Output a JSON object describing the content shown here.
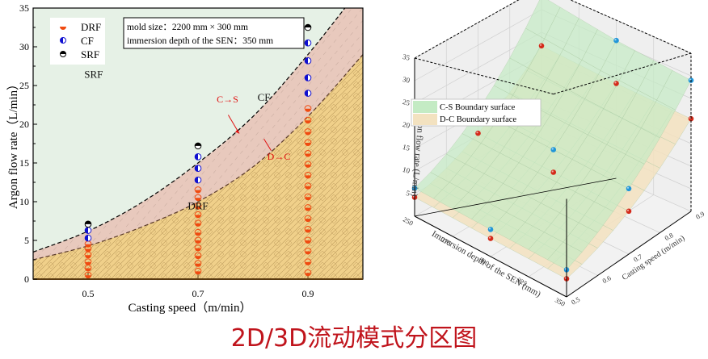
{
  "caption": "2D/3D流动模式分区图",
  "chart_data": [
    {
      "type": "scatter",
      "title": "",
      "xlabel": "Casting speed（m/min）",
      "ylabel": "Argon flow rate（L/min）",
      "xlim": [
        0.4,
        1.0
      ],
      "ylim": [
        0,
        35
      ],
      "xticks": [
        0.5,
        0.7,
        0.9
      ],
      "yticks": [
        0,
        5,
        10,
        15,
        20,
        25,
        30,
        35
      ],
      "legend": [
        "DRF",
        "CF",
        "SRF"
      ],
      "legend_position": "upper-left",
      "annotation_box": [
        "mold size：2200 mm × 300 mm",
        "immersion depth of the SEN：350 mm"
      ],
      "region_labels": [
        {
          "text": "SRF",
          "x": 0.51,
          "y": 26
        },
        {
          "text": "CF",
          "x": 0.82,
          "y": 23
        },
        {
          "text": "DRF",
          "x": 0.7,
          "y": 9
        }
      ],
      "boundary_annotations": [
        {
          "text": "C→S",
          "x": 0.79,
          "y": 22
        },
        {
          "text": "D→C",
          "x": 0.83,
          "y": 16
        }
      ],
      "boundaries": [
        {
          "name": "C-S boundary",
          "x": [
            0.4,
            0.5,
            0.6,
            0.7,
            0.8,
            0.9,
            1.0
          ],
          "y": [
            3.5,
            6.2,
            10.0,
            15.0,
            21.0,
            29.0,
            38.0
          ]
        },
        {
          "name": "D-C boundary",
          "x": [
            0.4,
            0.5,
            0.6,
            0.7,
            0.8,
            0.9,
            1.0
          ],
          "y": [
            2.5,
            4.3,
            6.8,
            10.0,
            14.5,
            21.0,
            29.0
          ]
        }
      ],
      "series": [
        {
          "name": "DRF",
          "x": [
            0.5,
            0.5,
            0.5,
            0.5,
            0.5,
            0.5,
            0.7,
            0.7,
            0.7,
            0.7,
            0.7,
            0.7,
            0.7,
            0.7,
            0.7,
            0.7,
            0.7,
            0.9,
            0.9,
            0.9,
            0.9,
            0.9,
            0.9,
            0.9,
            0.9,
            0.9,
            0.9,
            0.9,
            0.9,
            0.9,
            0.9,
            0.9,
            0.9
          ],
          "y": [
            0.5,
            1.4,
            2.2,
            3.1,
            3.9,
            4.5,
            1.0,
            2.0,
            3.0,
            4.0,
            5.0,
            6.0,
            7.2,
            8.3,
            9.4,
            10.5,
            11.5,
            0.8,
            2.2,
            3.6,
            5.0,
            6.4,
            7.8,
            9.2,
            10.6,
            12.0,
            13.4,
            14.8,
            16.2,
            17.6,
            19.0,
            20.5,
            22.0
          ]
        },
        {
          "name": "CF",
          "x": [
            0.5,
            0.5,
            0.7,
            0.7,
            0.7,
            0.9,
            0.9,
            0.9,
            0.9
          ],
          "y": [
            5.3,
            6.3,
            12.8,
            14.3,
            15.8,
            24.0,
            26.0,
            28.2,
            30.5
          ]
        },
        {
          "name": "SRF",
          "x": [
            0.5,
            0.7,
            0.9
          ],
          "y": [
            7.1,
            17.2,
            32.5
          ]
        }
      ],
      "colors": {
        "srf_region": "#e6f1e6",
        "cf_region": "#e8c9bd",
        "drf_region": "#f0d08a",
        "drf_marker": "#f04a10",
        "cf_marker": "#1010d0",
        "srf_marker": "#000000"
      }
    },
    {
      "type": "surface3d",
      "title": "",
      "xlabel": "Immersion depth of the SEN (mm)",
      "ylabel": "Casting speed (m/min)",
      "zlabel": "Argon flow rate (L/min)",
      "xticks": [
        250,
        275,
        300,
        325,
        350
      ],
      "yticks": [
        0.5,
        0.6,
        0.7,
        0.8,
        0.9
      ],
      "zticks": [
        5,
        10,
        15,
        20,
        25,
        30,
        35
      ],
      "zlim": [
        0,
        35
      ],
      "legend": [
        "C-S Boundary surface",
        "D-C Boundary surface"
      ],
      "legend_position": "upper-left",
      "series": [
        {
          "name": "C-S Boundary surface",
          "color": "#c4ebc4",
          "marker_color": "#2196d8",
          "points": [
            {
              "depth": 250,
              "speed": 0.5,
              "z": 6.2
            },
            {
              "depth": 300,
              "speed": 0.5,
              "z": 6.0
            },
            {
              "depth": 350,
              "speed": 0.5,
              "z": 6.0
            },
            {
              "depth": 250,
              "speed": 0.7,
              "z": 15.5
            },
            {
              "depth": 300,
              "speed": 0.7,
              "z": 15.0
            },
            {
              "depth": 350,
              "speed": 0.7,
              "z": 14.5
            },
            {
              "depth": 250,
              "speed": 0.9,
              "z": 33.0
            },
            {
              "depth": 300,
              "speed": 0.9,
              "z": 30.5
            },
            {
              "depth": 350,
              "speed": 0.9,
              "z": 29.0
            }
          ]
        },
        {
          "name": "D-C Boundary surface",
          "color": "#f3e2c0",
          "marker_color": "#d42a1a",
          "points": [
            {
              "depth": 250,
              "speed": 0.5,
              "z": 4.2
            },
            {
              "depth": 300,
              "speed": 0.5,
              "z": 4.0
            },
            {
              "depth": 350,
              "speed": 0.5,
              "z": 4.0
            },
            {
              "depth": 250,
              "speed": 0.7,
              "z": 10.5
            },
            {
              "depth": 300,
              "speed": 0.7,
              "z": 10.0
            },
            {
              "depth": 350,
              "speed": 0.7,
              "z": 9.5
            },
            {
              "depth": 250,
              "speed": 0.9,
              "z": 22.0
            },
            {
              "depth": 300,
              "speed": 0.9,
              "z": 21.0
            },
            {
              "depth": 350,
              "speed": 0.9,
              "z": 20.5
            }
          ]
        }
      ]
    }
  ]
}
